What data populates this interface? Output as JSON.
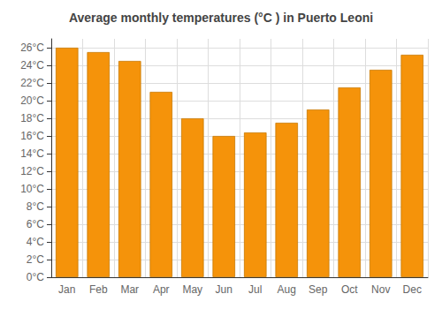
{
  "chart_data": {
    "type": "bar",
    "title": "Average monthly temperatures (°C ) in Puerto Leoni",
    "categories": [
      "Jan",
      "Feb",
      "Mar",
      "Apr",
      "May",
      "Jun",
      "Jul",
      "Aug",
      "Sep",
      "Oct",
      "Nov",
      "Dec"
    ],
    "values": [
      26.0,
      25.5,
      24.5,
      21.0,
      18.0,
      16.0,
      16.4,
      17.5,
      19.0,
      21.5,
      23.5,
      25.2
    ],
    "color": "#F5930A",
    "ylim": [
      0,
      27
    ],
    "yticks": [
      {
        "value": 0,
        "label": "0°C"
      },
      {
        "value": 2,
        "label": "2°C"
      },
      {
        "value": 4,
        "label": "4°C"
      },
      {
        "value": 6,
        "label": "6°C"
      },
      {
        "value": 8,
        "label": "8°C"
      },
      {
        "value": 10,
        "label": "10°C"
      },
      {
        "value": 12,
        "label": "12°C"
      },
      {
        "value": 14,
        "label": "14°C"
      },
      {
        "value": 16,
        "label": "16°C"
      },
      {
        "value": 18,
        "label": "18°C"
      },
      {
        "value": 20,
        "label": "20°C"
      },
      {
        "value": 22,
        "label": "22°C"
      },
      {
        "value": 24,
        "label": "24°C"
      },
      {
        "value": 26,
        "label": "26°C"
      }
    ],
    "grid": true
  }
}
